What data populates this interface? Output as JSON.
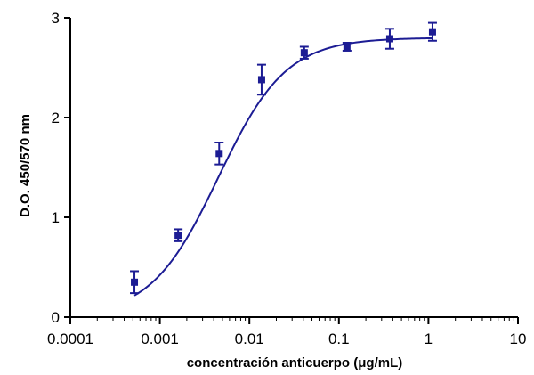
{
  "chart_data": {
    "type": "scatter",
    "title": "",
    "xlabel": "concentración anticuerpo (μg/mL)",
    "ylabel": "D.O. 450/570 nm",
    "x_scale": "log",
    "xlim": [
      0.0001,
      10
    ],
    "ylim": [
      0,
      3
    ],
    "grid": false,
    "legend": "none",
    "x_ticks": [
      {
        "value": 0.0001,
        "label": "0.0001"
      },
      {
        "value": 0.001,
        "label": "0.001"
      },
      {
        "value": 0.01,
        "label": "0.01"
      },
      {
        "value": 0.1,
        "label": "0.1"
      },
      {
        "value": 1,
        "label": "1"
      },
      {
        "value": 10,
        "label": "10"
      }
    ],
    "y_ticks": [
      {
        "value": 0,
        "label": "0"
      },
      {
        "value": 1,
        "label": "1"
      },
      {
        "value": 2,
        "label": "2"
      },
      {
        "value": 3,
        "label": "3"
      }
    ],
    "series": [
      {
        "color": "#1c1c94",
        "x": [
          0.00052,
          0.0016,
          0.0046,
          0.0137,
          0.041,
          0.123,
          0.37,
          1.11
        ],
        "y": [
          0.35,
          0.82,
          1.64,
          2.38,
          2.65,
          2.71,
          2.79,
          2.86
        ],
        "error": [
          0.11,
          0.06,
          0.11,
          0.15,
          0.06,
          0.04,
          0.1,
          0.09
        ]
      }
    ],
    "fit": {
      "model": "sigmoidal",
      "color": "#1c1c94",
      "bottom": 0.0,
      "top": 2.8,
      "ec50": 0.0045,
      "hill": 1.15
    }
  }
}
